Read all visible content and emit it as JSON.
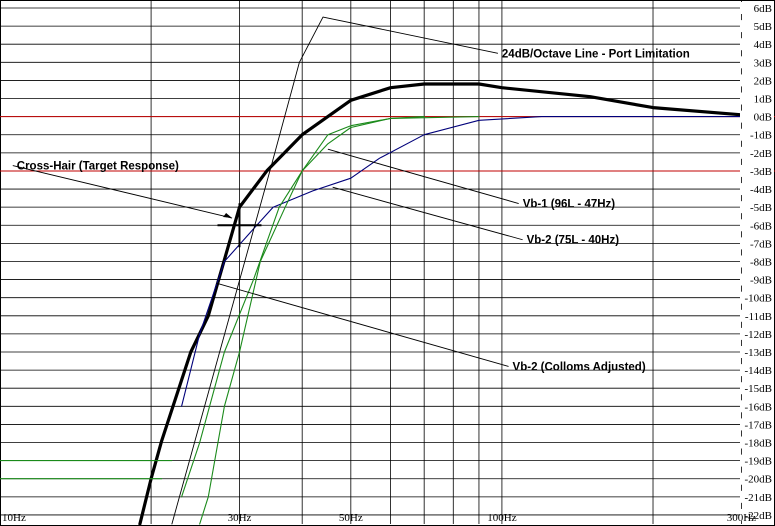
{
  "chart_data": {
    "type": "line",
    "x_scale": "log",
    "xlim": [
      10,
      350
    ],
    "ylim": [
      -22.5,
      6
    ],
    "x_ticks": [
      {
        "value": 10,
        "label": "10Hz"
      },
      {
        "value": 30,
        "label": "30Hz"
      },
      {
        "value": 50,
        "label": "50Hz"
      },
      {
        "value": 100,
        "label": "100Hz"
      },
      {
        "value": 300,
        "label": "300Hz"
      }
    ],
    "x_gridlines": [
      10,
      20,
      30,
      40,
      50,
      60,
      70,
      80,
      90,
      100,
      200,
      300
    ],
    "y_ticks": [
      {
        "value": 6,
        "label": "6dB"
      },
      {
        "value": 5,
        "label": "5dB"
      },
      {
        "value": 4,
        "label": "4dB"
      },
      {
        "value": 3,
        "label": "3dB"
      },
      {
        "value": 2,
        "label": "2dB"
      },
      {
        "value": 1,
        "label": "1dB"
      },
      {
        "value": 0,
        "label": "0dB"
      },
      {
        "value": -1,
        "label": "-1dB"
      },
      {
        "value": -2,
        "label": "-2dB"
      },
      {
        "value": -3,
        "label": "-3dB"
      },
      {
        "value": -4,
        "label": "-4dB"
      },
      {
        "value": -5,
        "label": "-5dB"
      },
      {
        "value": -6,
        "label": "-6dB"
      },
      {
        "value": -7,
        "label": "-7dB"
      },
      {
        "value": -8,
        "label": "-8dB"
      },
      {
        "value": -9,
        "label": "-9dB"
      },
      {
        "value": -10,
        "label": "-10dB"
      },
      {
        "value": -11,
        "label": "-11dB"
      },
      {
        "value": -12,
        "label": "-12dB"
      },
      {
        "value": -13,
        "label": "-13dB"
      },
      {
        "value": -14,
        "label": "-14dB"
      },
      {
        "value": -15,
        "label": "-15dB"
      },
      {
        "value": -16,
        "label": "-16dB"
      },
      {
        "value": -17,
        "label": "-17dB"
      },
      {
        "value": -18,
        "label": "-18dB"
      },
      {
        "value": -19,
        "label": "-19dB"
      },
      {
        "value": -20,
        "label": "-20dB"
      },
      {
        "value": -21,
        "label": "-21dB"
      },
      {
        "value": -22,
        "label": "-22dB"
      }
    ],
    "reference_lines": [
      {
        "y": 0,
        "color": "#c00000"
      },
      {
        "y": -3,
        "color": "#c00000"
      }
    ],
    "series": [
      {
        "color": "#000000",
        "width": 3.2,
        "points": [
          [
            19,
            -22.5
          ],
          [
            20,
            -20
          ],
          [
            21,
            -17.9
          ],
          [
            24,
            -13
          ],
          [
            26,
            -11
          ],
          [
            30,
            -5
          ],
          [
            34,
            -3
          ],
          [
            40,
            -1
          ],
          [
            50,
            0.9
          ],
          [
            60,
            1.6
          ],
          [
            70,
            1.8
          ],
          [
            90,
            1.8
          ],
          [
            100,
            1.6
          ],
          [
            150,
            1.1
          ],
          [
            200,
            0.5
          ],
          [
            300,
            0.1
          ]
        ]
      },
      {
        "color": "#00007a",
        "width": 1.1,
        "points": [
          [
            23,
            -16
          ],
          [
            25,
            -12
          ],
          [
            28,
            -8
          ],
          [
            32,
            -6.2
          ],
          [
            35,
            -5
          ],
          [
            42,
            -4.1
          ],
          [
            50,
            -3.4
          ],
          [
            57,
            -2.3
          ],
          [
            70,
            -1
          ],
          [
            90,
            -0.2
          ],
          [
            120,
            0
          ],
          [
            300,
            0
          ]
        ]
      },
      {
        "color": "#1a8a1a",
        "width": 1.1,
        "points": [
          [
            23,
            -21
          ],
          [
            25,
            -18
          ],
          [
            28,
            -13
          ],
          [
            32,
            -9
          ],
          [
            36,
            -5
          ],
          [
            40,
            -3
          ],
          [
            45,
            -1.5
          ],
          [
            50,
            -0.6
          ],
          [
            60,
            -0.1
          ],
          [
            90,
            0
          ]
        ]
      },
      {
        "color": "#1a8a1a",
        "width": 1.1,
        "points": [
          [
            25,
            -22.5
          ],
          [
            26,
            -21
          ],
          [
            28,
            -16
          ],
          [
            30,
            -13
          ],
          [
            33,
            -8
          ],
          [
            37,
            -5
          ],
          [
            40,
            -3
          ],
          [
            45,
            -1
          ],
          [
            50,
            -0.5
          ],
          [
            60,
            -0.1
          ],
          [
            70,
            0
          ]
        ]
      },
      {
        "color": "#1a8a1a",
        "width": 1.1,
        "points": [
          [
            10,
            -19
          ],
          [
            22,
            -19
          ]
        ]
      },
      {
        "color": "#1a8a1a",
        "width": 1.1,
        "points": [
          [
            10,
            -20
          ],
          [
            21,
            -20
          ]
        ]
      },
      {
        "color": "#000000",
        "width": 0.9,
        "points": [
          [
            22,
            -22.5
          ],
          [
            34.5,
            -3
          ],
          [
            39.5,
            3
          ],
          [
            44,
            5.5
          ]
        ]
      }
    ],
    "annotations": [
      {
        "text": "24dB/Octave Line - Port Limitation",
        "anchor": [
          44,
          5.5
        ],
        "label_at": [
          100,
          3.5
        ]
      },
      {
        "text": "Cross-Hair (Target Response)",
        "anchor": [
          29,
          -5.6
        ],
        "label_at": [
          10.8,
          -2.7
        ]
      },
      {
        "text": "Vb-1 (96L - 47Hz)",
        "anchor": [
          45,
          -1.8
        ],
        "label_at": [
          110,
          -4.8
        ]
      },
      {
        "text": "Vb-2 (75L - 40Hz)",
        "anchor": [
          46,
          -3.9
        ],
        "label_at": [
          112,
          -6.8
        ]
      },
      {
        "text": "Vb-2 (Colloms Adjusted)",
        "anchor": [
          27,
          -9.2
        ],
        "label_at": [
          105,
          -13.8
        ]
      }
    ],
    "cross_hair": {
      "x": 30,
      "y": -6
    }
  }
}
